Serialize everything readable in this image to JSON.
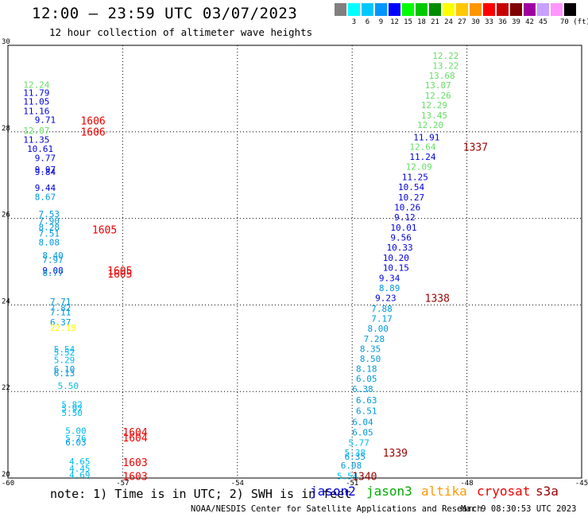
{
  "header": {
    "title": "12:00 — 23:59 UTC 03/07/2023",
    "subtitle": "12 hour collection of altimeter wave heights"
  },
  "color_scale": {
    "unit": "70 (ft)",
    "stops": [
      {
        "label": "",
        "color": "#808080"
      },
      {
        "label": "3",
        "color": "#00ffff"
      },
      {
        "label": "6",
        "color": "#00c8ff"
      },
      {
        "label": "9",
        "color": "#0096ff"
      },
      {
        "label": "12",
        "color": "#0000ff"
      },
      {
        "label": "15",
        "color": "#00ff00"
      },
      {
        "label": "18",
        "color": "#00c800"
      },
      {
        "label": "21",
        "color": "#008c00"
      },
      {
        "label": "24",
        "color": "#ffff00"
      },
      {
        "label": "27",
        "color": "#ffc800"
      },
      {
        "label": "30",
        "color": "#ff9600"
      },
      {
        "label": "33",
        "color": "#ff0000"
      },
      {
        "label": "36",
        "color": "#c80000"
      },
      {
        "label": "39",
        "color": "#800000"
      },
      {
        "label": "42",
        "color": "#a000a0"
      },
      {
        "label": "45",
        "color": "#c8a0ff"
      },
      {
        "label": "",
        "color": "#ff96ff"
      },
      {
        "label": "",
        "color": "#000000"
      }
    ]
  },
  "footer": {
    "note": "note: 1) Time is in UTC; 2) SWH is in feet",
    "satellites": [
      {
        "name": "jason2",
        "color": "#0000dd"
      },
      {
        "name": "jason3",
        "color": "#00aa00"
      },
      {
        "name": "altika",
        "color": "#ff9900"
      },
      {
        "name": "cryosat",
        "color": "#ee0000"
      },
      {
        "name": "s3a",
        "color": "#990000"
      }
    ],
    "credit": "NOAA/NESDIS Center for Satellite Applications and Research",
    "stamp": "Mar  9 08:30:53 UTC 2023"
  },
  "chart_data": {
    "type": "scatter",
    "title": "12:00 — 23:59 UTC 03/07/2023",
    "subtitle": "12 hour collection of altimeter wave heights",
    "xlim": [
      -60,
      -45
    ],
    "ylim": [
      20,
      30
    ],
    "x_ticks": [
      "-60",
      "-57",
      "-54",
      "-51",
      "-48",
      "-45"
    ],
    "y_ticks": [
      "20",
      "22",
      "24",
      "26",
      "28",
      "30"
    ],
    "grid": true,
    "tracks": [
      {
        "points": [
          {
            "x": -59.6,
            "y": 29.09,
            "v": "12.24",
            "c": "#66dd66"
          },
          {
            "x": -59.6,
            "y": 28.91,
            "v": "11.79",
            "c": "#0000dd"
          },
          {
            "x": -59.6,
            "y": 28.7,
            "v": "11.05",
            "c": "#0000dd"
          },
          {
            "x": -59.6,
            "y": 28.48,
            "v": "11.16",
            "c": "#0000dd"
          },
          {
            "x": -59.3,
            "y": 28.28,
            "v": "9.71",
            "c": "#0000dd"
          },
          {
            "x": -59.6,
            "y": 28.03,
            "v": "12.07",
            "c": "#66dd66"
          },
          {
            "x": -59.6,
            "y": 27.82,
            "v": "11.35",
            "c": "#0000dd"
          },
          {
            "x": -59.5,
            "y": 27.61,
            "v": "10.61",
            "c": "#0000dd"
          },
          {
            "x": -59.3,
            "y": 27.4,
            "v": "9.77",
            "c": "#0000dd"
          },
          {
            "x": -59.3,
            "y": 27.13,
            "v": "9.97",
            "c": "#0000dd"
          },
          {
            "x": -59.3,
            "y": 27.08,
            "v": "9.84",
            "c": "#0000dd"
          },
          {
            "x": -59.3,
            "y": 26.71,
            "v": "9.44",
            "c": "#0000dd"
          },
          {
            "x": -59.3,
            "y": 26.5,
            "v": "8.67",
            "c": "#0099dd"
          },
          {
            "x": -59.2,
            "y": 26.1,
            "v": "7.53",
            "c": "#0099dd"
          },
          {
            "x": -59.2,
            "y": 25.95,
            "v": "7.90",
            "c": "#0099dd"
          },
          {
            "x": -59.2,
            "y": 25.8,
            "v": "8.28",
            "c": "#0099dd"
          },
          {
            "x": -59.2,
            "y": 25.65,
            "v": "7.51",
            "c": "#0099dd"
          },
          {
            "x": -59.2,
            "y": 25.45,
            "v": "8.08",
            "c": "#0099dd"
          },
          {
            "x": -59.1,
            "y": 25.15,
            "v": "8.40",
            "c": "#0099dd"
          },
          {
            "x": -59.1,
            "y": 25.05,
            "v": "7.97",
            "c": "#0099dd"
          },
          {
            "x": -59.1,
            "y": 24.8,
            "v": "9.08",
            "c": "#0000dd"
          },
          {
            "x": -59.1,
            "y": 24.74,
            "v": "8.77",
            "c": "#0099dd"
          },
          {
            "x": -58.9,
            "y": 24.08,
            "v": "7.71",
            "c": "#0099dd"
          },
          {
            "x": -58.9,
            "y": 23.93,
            "v": "7.82",
            "c": "#0099dd"
          },
          {
            "x": -58.9,
            "y": 23.83,
            "v": "7.11",
            "c": "#0099dd"
          },
          {
            "x": -58.9,
            "y": 23.6,
            "v": "6.37",
            "c": "#0099dd"
          },
          {
            "x": -58.9,
            "y": 23.47,
            "v": "22.19",
            "c": "#ffff00"
          },
          {
            "x": -58.8,
            "y": 22.98,
            "v": "5.54",
            "c": "#00bbee"
          },
          {
            "x": -58.8,
            "y": 22.9,
            "v": "5.52",
            "c": "#00bbee"
          },
          {
            "x": -58.8,
            "y": 22.73,
            "v": "5.29",
            "c": "#00bbee"
          },
          {
            "x": -58.8,
            "y": 22.52,
            "v": "6.10",
            "c": "#0099dd"
          },
          {
            "x": -58.8,
            "y": 22.43,
            "v": "6.13",
            "c": "#0099dd"
          },
          {
            "x": -58.7,
            "y": 22.13,
            "v": "5.50",
            "c": "#00bbee"
          },
          {
            "x": -58.6,
            "y": 21.7,
            "v": "5.82",
            "c": "#00bbee"
          },
          {
            "x": -58.6,
            "y": 21.61,
            "v": "5.97",
            "c": "#00bbee"
          },
          {
            "x": -58.6,
            "y": 21.51,
            "v": "5.50",
            "c": "#00bbee"
          },
          {
            "x": -58.5,
            "y": 21.09,
            "v": "5.00",
            "c": "#00bbee"
          },
          {
            "x": -58.5,
            "y": 20.92,
            "v": "5.76",
            "c": "#00bbee"
          },
          {
            "x": -58.5,
            "y": 20.83,
            "v": "6.03",
            "c": "#0099dd"
          },
          {
            "x": -58.4,
            "y": 20.39,
            "v": "4.65",
            "c": "#00bbee"
          },
          {
            "x": -58.4,
            "y": 20.22,
            "v": "4.45",
            "c": "#00bbee"
          },
          {
            "x": -58.4,
            "y": 20.07,
            "v": "4.69",
            "c": "#00bbee"
          }
        ],
        "times": [
          {
            "x": -58.1,
            "y": 28.26,
            "label": "1606",
            "c": "#ee0000"
          },
          {
            "x": -58.1,
            "y": 28.01,
            "label": "1606",
            "c": "#ee0000"
          },
          {
            "x": -57.8,
            "y": 25.74,
            "label": "1605",
            "c": "#ee0000"
          },
          {
            "x": -57.4,
            "y": 24.8,
            "label": "1605",
            "c": "#ee0000"
          },
          {
            "x": -57.4,
            "y": 24.72,
            "label": "1605",
            "c": "#ee0000"
          },
          {
            "x": -57.0,
            "y": 21.07,
            "label": "1604",
            "c": "#ee0000"
          },
          {
            "x": -57.0,
            "y": 20.94,
            "label": "1604",
            "c": "#ee0000"
          },
          {
            "x": -57.0,
            "y": 20.37,
            "label": "1603",
            "c": "#ee0000"
          },
          {
            "x": -57.0,
            "y": 20.05,
            "label": "1603",
            "c": "#ee0000"
          }
        ]
      },
      {
        "points": [
          {
            "x": -48.9,
            "y": 29.76,
            "v": "12.22",
            "c": "#66dd66"
          },
          {
            "x": -48.9,
            "y": 29.53,
            "v": "13.22",
            "c": "#66dd66"
          },
          {
            "x": -49.0,
            "y": 29.3,
            "v": "13.68",
            "c": "#66dd66"
          },
          {
            "x": -49.1,
            "y": 29.08,
            "v": "13.07",
            "c": "#66dd66"
          },
          {
            "x": -49.1,
            "y": 28.84,
            "v": "12.26",
            "c": "#66dd66"
          },
          {
            "x": -49.2,
            "y": 28.62,
            "v": "12.29",
            "c": "#66dd66"
          },
          {
            "x": -49.2,
            "y": 28.38,
            "v": "13.45",
            "c": "#66dd66"
          },
          {
            "x": -49.3,
            "y": 28.16,
            "v": "12.20",
            "c": "#66dd66"
          },
          {
            "x": -49.4,
            "y": 27.88,
            "v": "11.91",
            "c": "#0000dd"
          },
          {
            "x": -49.5,
            "y": 27.66,
            "v": "12.64",
            "c": "#66dd66"
          },
          {
            "x": -49.5,
            "y": 27.43,
            "v": "11.24",
            "c": "#0000dd"
          },
          {
            "x": -49.6,
            "y": 27.2,
            "v": "12.09",
            "c": "#66dd66"
          },
          {
            "x": -49.7,
            "y": 26.96,
            "v": "11.25",
            "c": "#0000dd"
          },
          {
            "x": -49.8,
            "y": 26.73,
            "v": "10.54",
            "c": "#0000dd"
          },
          {
            "x": -49.8,
            "y": 26.49,
            "v": "10.27",
            "c": "#0000dd"
          },
          {
            "x": -49.9,
            "y": 26.26,
            "v": "10.26",
            "c": "#0000dd"
          },
          {
            "x": -49.9,
            "y": 26.03,
            "v": "9.12",
            "c": "#0000dd"
          },
          {
            "x": -50.0,
            "y": 25.79,
            "v": "10.01",
            "c": "#0000dd"
          },
          {
            "x": -50.0,
            "y": 25.56,
            "v": "9.56",
            "c": "#0000dd"
          },
          {
            "x": -50.1,
            "y": 25.33,
            "v": "10.33",
            "c": "#0000dd"
          },
          {
            "x": -50.2,
            "y": 25.09,
            "v": "10.20",
            "c": "#0000dd"
          },
          {
            "x": -50.2,
            "y": 24.86,
            "v": "10.15",
            "c": "#0000dd"
          },
          {
            "x": -50.3,
            "y": 24.62,
            "v": "9.34",
            "c": "#0000dd"
          },
          {
            "x": -50.3,
            "y": 24.39,
            "v": "8.89",
            "c": "#0099dd"
          },
          {
            "x": -50.4,
            "y": 24.16,
            "v": "9.23",
            "c": "#0000dd"
          },
          {
            "x": -50.5,
            "y": 23.92,
            "v": "7.88",
            "c": "#0099dd"
          },
          {
            "x": -50.5,
            "y": 23.69,
            "v": "7.17",
            "c": "#0099dd"
          },
          {
            "x": -50.6,
            "y": 23.46,
            "v": "8.00",
            "c": "#0099dd"
          },
          {
            "x": -50.7,
            "y": 23.22,
            "v": "7.28",
            "c": "#0099dd"
          },
          {
            "x": -50.8,
            "y": 22.99,
            "v": "8.35",
            "c": "#0099dd"
          },
          {
            "x": -50.8,
            "y": 22.76,
            "v": "8.50",
            "c": "#0099dd"
          },
          {
            "x": -50.9,
            "y": 22.53,
            "v": "8.18",
            "c": "#0099dd"
          },
          {
            "x": -50.9,
            "y": 22.3,
            "v": "6.05",
            "c": "#0099dd"
          },
          {
            "x": -51.0,
            "y": 22.06,
            "v": "6.38",
            "c": "#0099dd"
          },
          {
            "x": -50.9,
            "y": 21.8,
            "v": "6.63",
            "c": "#0099dd"
          },
          {
            "x": -50.9,
            "y": 21.55,
            "v": "6.51",
            "c": "#0099dd"
          },
          {
            "x": -51.0,
            "y": 21.3,
            "v": "6.04",
            "c": "#0099dd"
          },
          {
            "x": -51.0,
            "y": 21.06,
            "v": "6.05",
            "c": "#0099dd"
          },
          {
            "x": -51.1,
            "y": 20.82,
            "v": "5.77",
            "c": "#00bbee"
          },
          {
            "x": -51.2,
            "y": 20.59,
            "v": "5.38",
            "c": "#00bbee"
          },
          {
            "x": -51.2,
            "y": 20.5,
            "v": "6.35",
            "c": "#0099dd"
          },
          {
            "x": -51.3,
            "y": 20.29,
            "v": "6.08",
            "c": "#0099dd"
          },
          {
            "x": -51.4,
            "y": 20.05,
            "v": "5.54",
            "c": "#00bbee"
          }
        ],
        "times": [
          {
            "x": -48.1,
            "y": 27.66,
            "label": "1337",
            "c": "#990000"
          },
          {
            "x": -49.1,
            "y": 24.16,
            "label": "1338",
            "c": "#990000"
          },
          {
            "x": -50.2,
            "y": 20.59,
            "label": "1339",
            "c": "#990000"
          },
          {
            "x": -51.0,
            "y": 20.05,
            "label": "1340",
            "c": "#990000"
          }
        ]
      }
    ]
  }
}
